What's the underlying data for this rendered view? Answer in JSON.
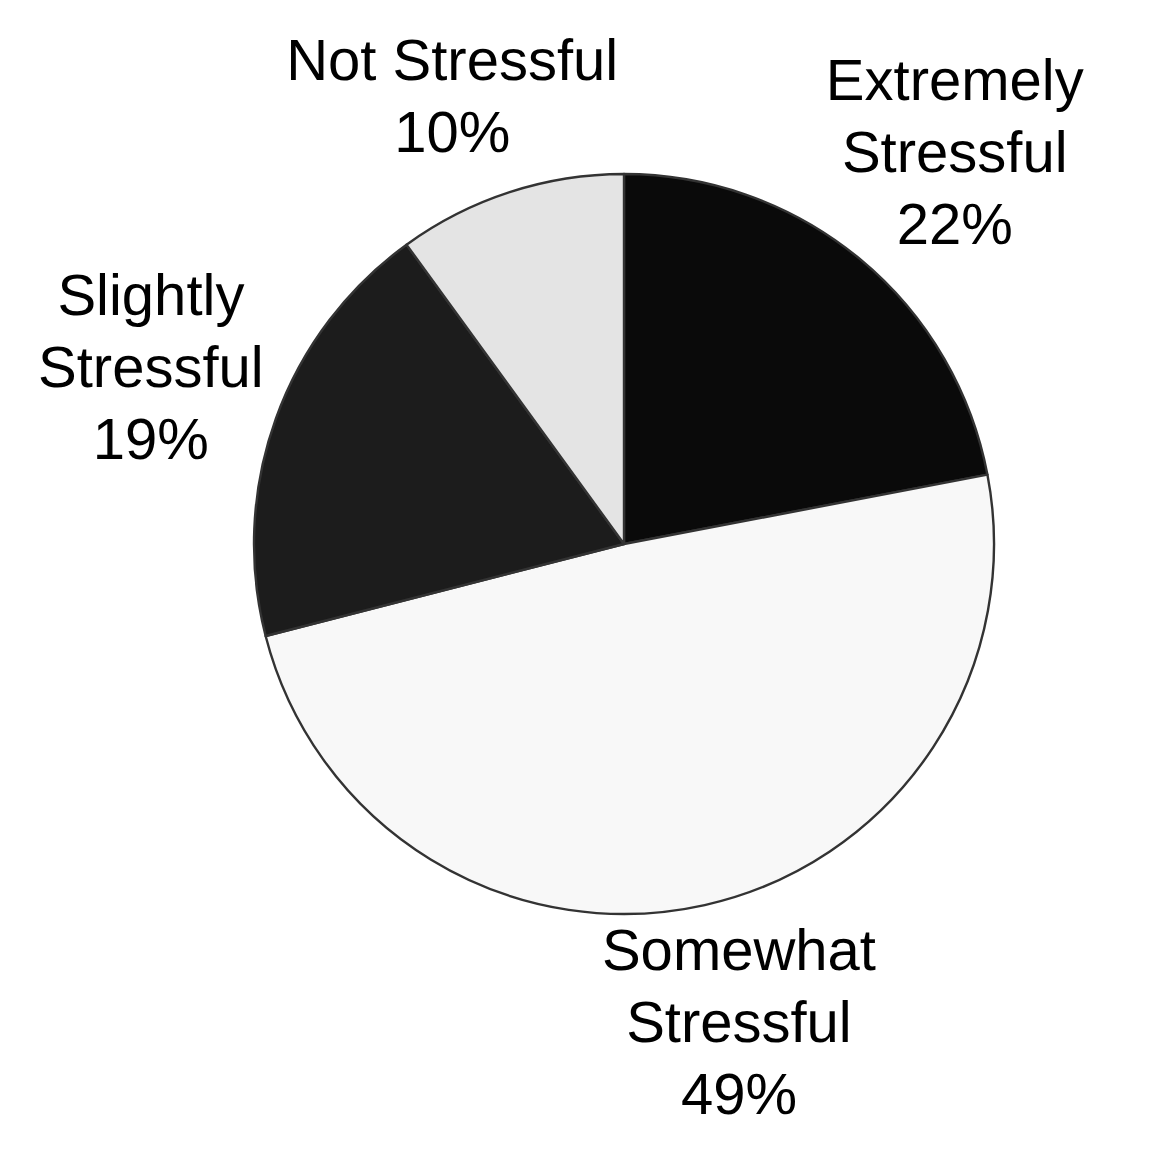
{
  "chart_data": {
    "type": "pie",
    "categories": [
      "Extremely Stressful",
      "Somewhat Stressful",
      "Slightly Stressful",
      "Not Stressful"
    ],
    "values": [
      22,
      49,
      19,
      10
    ],
    "colors": [
      "#0a0a0a",
      "#f8f8f8",
      "#1c1c1c",
      "#e4e4e4"
    ],
    "value_labels": [
      "22%",
      "49%",
      "19%",
      "10%"
    ]
  }
}
